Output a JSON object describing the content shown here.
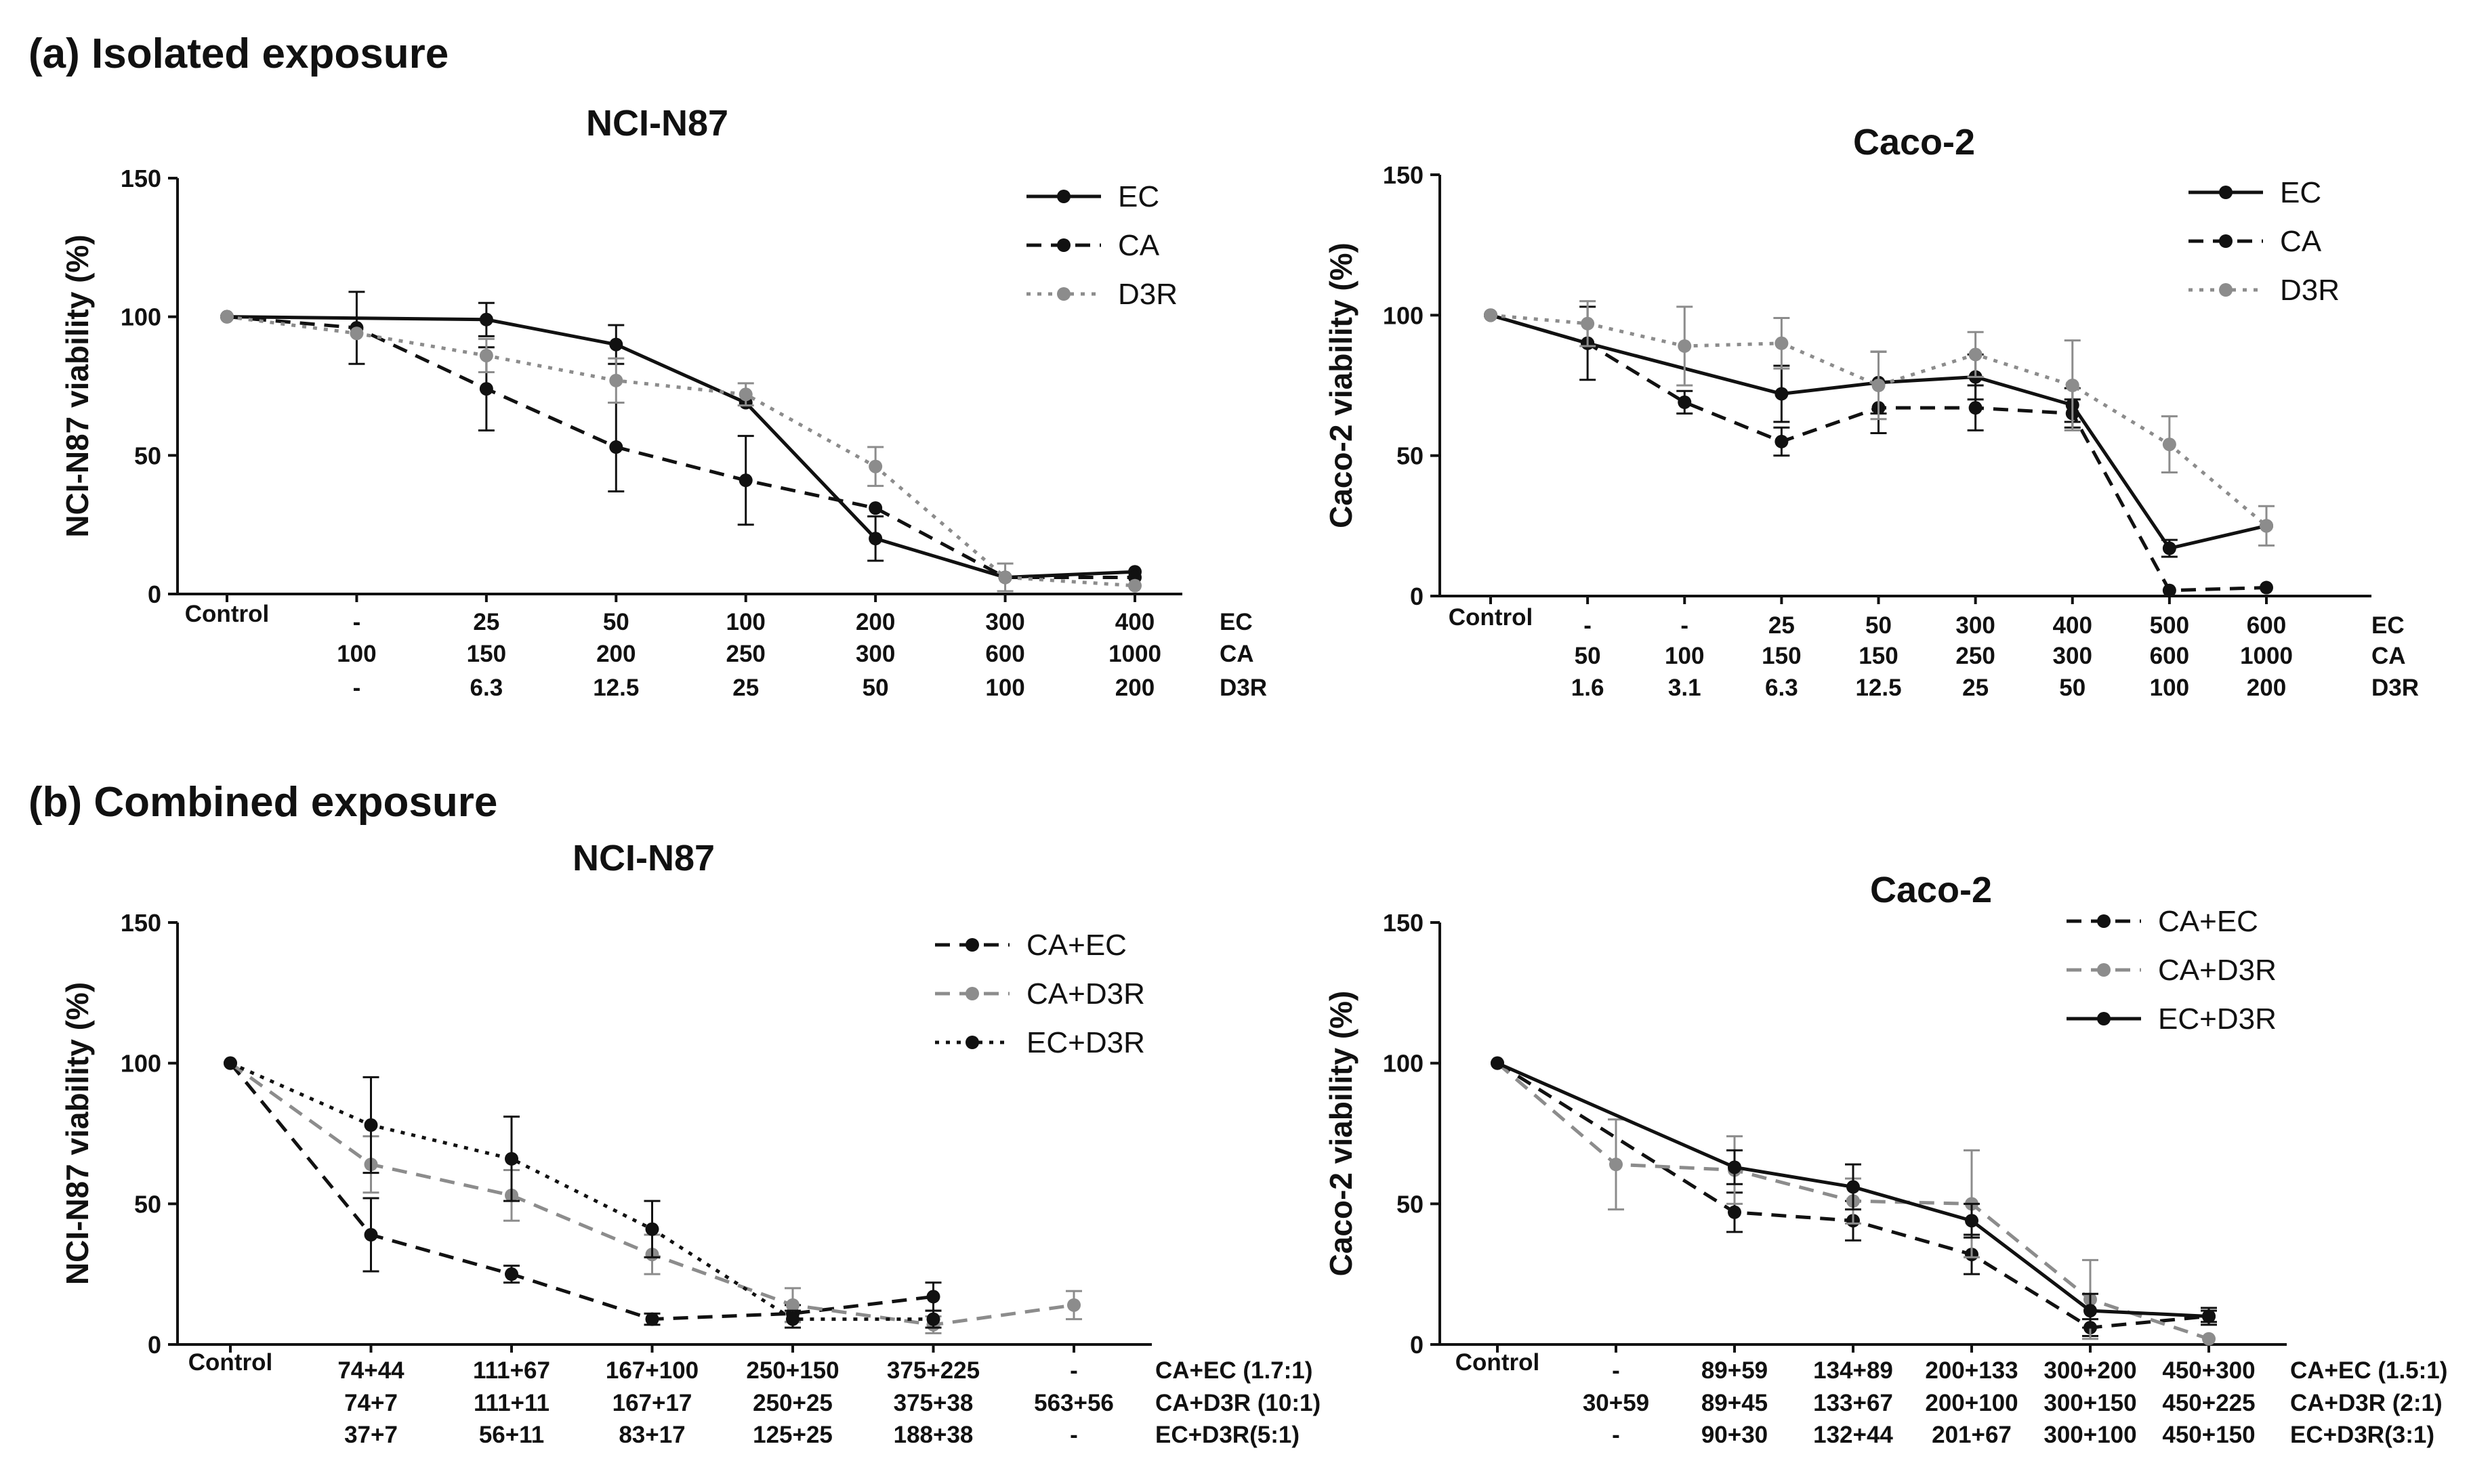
{
  "sections": {
    "a": "(a) Isolated exposure",
    "b": "(b) Combined exposure"
  },
  "colors": {
    "black": "#111111",
    "gray": "#8c8c8c"
  },
  "chart_data": [
    {
      "id": "a-ncin87",
      "type": "line",
      "title": "NCI-N87",
      "ylabel": "NCI-N87 viability (%)",
      "ylim": [
        0,
        150
      ],
      "yticks": [
        0,
        50,
        100,
        150
      ],
      "categories": [
        "Control",
        "1",
        "2",
        "3",
        "4",
        "5",
        "6",
        "7"
      ],
      "first_label": "Control",
      "x_rows": [
        {
          "label": "EC",
          "cells": [
            "-",
            "25",
            "50",
            "100",
            "200",
            "300",
            "400"
          ]
        },
        {
          "label": "CA",
          "cells": [
            "100",
            "150",
            "200",
            "250",
            "300",
            "600",
            "1000"
          ]
        },
        {
          "label": "D3R",
          "cells": [
            "-",
            "6.3",
            "12.5",
            "25",
            "50",
            "100",
            "200"
          ]
        }
      ],
      "series": [
        {
          "name": "EC",
          "color": "#111111",
          "dash": "solid",
          "values": [
            100,
            null,
            99,
            90,
            69,
            20,
            6,
            8
          ],
          "errors": [
            0,
            null,
            6,
            7,
            0,
            8,
            0,
            0
          ]
        },
        {
          "name": "CA",
          "color": "#111111",
          "dash": "dashed",
          "values": [
            100,
            96,
            74,
            53,
            41,
            31,
            6,
            6
          ],
          "errors": [
            0,
            13,
            15,
            16,
            16,
            0,
            0,
            0
          ]
        },
        {
          "name": "D3R",
          "color": "#8c8c8c",
          "dash": "dotted",
          "values": [
            100,
            94,
            86,
            77,
            72,
            46,
            6,
            3
          ],
          "errors": [
            0,
            0,
            6,
            8,
            4,
            7,
            5,
            0
          ]
        }
      ],
      "legend": "top-right"
    },
    {
      "id": "a-caco2",
      "type": "line",
      "title": "Caco-2",
      "ylabel": "Caco-2 viability (%)",
      "ylim": [
        0,
        150
      ],
      "yticks": [
        0,
        50,
        100,
        150
      ],
      "categories": [
        "Control",
        "1",
        "2",
        "3",
        "4",
        "5",
        "6",
        "7",
        "8"
      ],
      "first_label": "Control",
      "x_rows": [
        {
          "label": "EC",
          "cells": [
            "-",
            "-",
            "25",
            "50",
            "300",
            "400",
            "500",
            "600"
          ]
        },
        {
          "label": "CA",
          "cells": [
            "50",
            "100",
            "150",
            "150",
            "250",
            "300",
            "600",
            "1000"
          ]
        },
        {
          "label": "D3R",
          "cells": [
            "1.6",
            "3.1",
            "6.3",
            "12.5",
            "25",
            "50",
            "100",
            "200"
          ]
        }
      ],
      "series": [
        {
          "name": "EC",
          "color": "#111111",
          "dash": "solid",
          "values": [
            100,
            90,
            null,
            72,
            76,
            78,
            68,
            17,
            25
          ],
          "errors": [
            0,
            13,
            null,
            10,
            11,
            8,
            6,
            3,
            0
          ]
        },
        {
          "name": "CA",
          "color": "#111111",
          "dash": "dashed",
          "values": [
            100,
            90,
            69,
            55,
            67,
            67,
            65,
            2,
            3
          ],
          "errors": [
            0,
            0,
            4,
            5,
            9,
            8,
            5,
            0,
            0
          ]
        },
        {
          "name": "D3R",
          "color": "#8c8c8c",
          "dash": "dotted",
          "values": [
            100,
            97,
            89,
            90,
            75,
            86,
            75,
            54,
            25
          ],
          "errors": [
            0,
            8,
            14,
            9,
            12,
            8,
            16,
            10,
            7
          ]
        }
      ],
      "legend": "top-right"
    },
    {
      "id": "b-ncin87",
      "type": "line",
      "title": "NCI-N87",
      "ylabel": "NCI-N87 viability (%)",
      "ylim": [
        0,
        150
      ],
      "yticks": [
        0,
        50,
        100,
        150
      ],
      "categories": [
        "Control",
        "1",
        "2",
        "3",
        "4",
        "5",
        "6"
      ],
      "first_label": "Control",
      "x_rows": [
        {
          "label": "CA+EC (1.7:1)",
          "cells": [
            "74+44",
            "111+67",
            "167+100",
            "250+150",
            "375+225",
            "-"
          ]
        },
        {
          "label": "CA+D3R (10:1)",
          "cells": [
            "74+7",
            "111+11",
            "167+17",
            "250+25",
            "375+38",
            "563+56"
          ]
        },
        {
          "label": "EC+D3R(5:1)",
          "cells": [
            "37+7",
            "56+11",
            "83+17",
            "125+25",
            "188+38",
            "-"
          ]
        }
      ],
      "series": [
        {
          "name": "CA+EC",
          "color": "#111111",
          "dash": "dashed",
          "values": [
            100,
            39,
            25,
            9,
            11,
            17,
            null
          ],
          "errors": [
            0,
            13,
            3,
            2,
            3,
            5,
            null
          ]
        },
        {
          "name": "CA+D3R",
          "color": "#8c8c8c",
          "dash": "dashed",
          "values": [
            100,
            64,
            53,
            32,
            14,
            7,
            14
          ],
          "errors": [
            0,
            10,
            9,
            7,
            6,
            3,
            5
          ]
        },
        {
          "name": "EC+D3R",
          "color": "#111111",
          "dash": "dotted",
          "values": [
            100,
            78,
            66,
            41,
            9,
            9,
            null
          ],
          "errors": [
            0,
            17,
            15,
            10,
            3,
            3,
            null
          ]
        }
      ],
      "legend": "top-right"
    },
    {
      "id": "b-caco2",
      "type": "line",
      "title": "Caco-2",
      "ylabel": "Caco-2 viability (%)",
      "ylim": [
        0,
        150
      ],
      "yticks": [
        0,
        50,
        100,
        150
      ],
      "categories": [
        "Control",
        "1",
        "2",
        "3",
        "4",
        "5",
        "6"
      ],
      "first_label": "Control",
      "x_rows": [
        {
          "label": "CA+EC (1.5:1)",
          "cells": [
            "-",
            "89+59",
            "134+89",
            "200+133",
            "300+200",
            "450+300"
          ]
        },
        {
          "label": "CA+D3R (2:1)",
          "cells": [
            "30+59",
            "89+45",
            "133+67",
            "200+100",
            "300+150",
            "450+225"
          ]
        },
        {
          "label": "EC+D3R(3:1)",
          "cells": [
            "-",
            "90+30",
            "132+44",
            "201+67",
            "300+100",
            "450+150"
          ]
        }
      ],
      "series": [
        {
          "name": "CA+EC",
          "color": "#111111",
          "dash": "dashed",
          "values": [
            100,
            null,
            47,
            44,
            32,
            6,
            10
          ],
          "errors": [
            0,
            null,
            7,
            7,
            7,
            3,
            2
          ]
        },
        {
          "name": "CA+D3R",
          "color": "#8c8c8c",
          "dash": "dashed",
          "values": [
            100,
            64,
            62,
            51,
            50,
            16,
            2
          ],
          "errors": [
            0,
            16,
            12,
            8,
            19,
            14,
            0
          ]
        },
        {
          "name": "EC+D3R",
          "color": "#111111",
          "dash": "solid",
          "values": [
            100,
            null,
            63,
            56,
            44,
            12,
            10
          ],
          "errors": [
            0,
            null,
            6,
            8,
            6,
            6,
            3
          ]
        }
      ],
      "legend": "top-right"
    }
  ]
}
